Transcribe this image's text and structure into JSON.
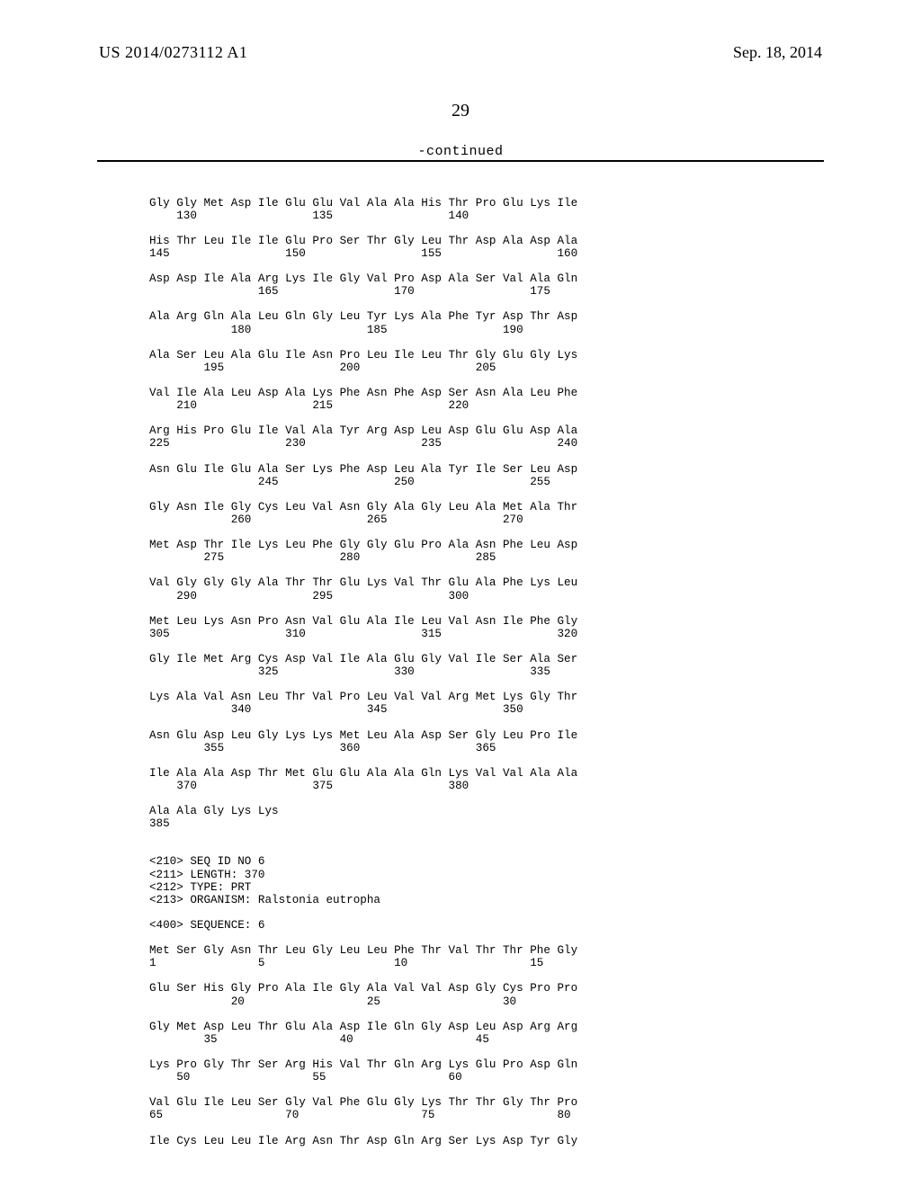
{
  "header": {
    "pub_number": "US 2014/0273112 A1",
    "pub_date": "Sep. 18, 2014",
    "page_number": "29",
    "continued_label": "-continued"
  },
  "sequence_text": "Gly Gly Met Asp Ile Glu Glu Val Ala Ala His Thr Pro Glu Lys Ile\n    130                 135                 140\n\nHis Thr Leu Ile Ile Glu Pro Ser Thr Gly Leu Thr Asp Ala Asp Ala\n145                 150                 155                 160\n\nAsp Asp Ile Ala Arg Lys Ile Gly Val Pro Asp Ala Ser Val Ala Gln\n                165                 170                 175\n\nAla Arg Gln Ala Leu Gln Gly Leu Tyr Lys Ala Phe Tyr Asp Thr Asp\n            180                 185                 190\n\nAla Ser Leu Ala Glu Ile Asn Pro Leu Ile Leu Thr Gly Glu Gly Lys\n        195                 200                 205\n\nVal Ile Ala Leu Asp Ala Lys Phe Asn Phe Asp Ser Asn Ala Leu Phe\n    210                 215                 220\n\nArg His Pro Glu Ile Val Ala Tyr Arg Asp Leu Asp Glu Glu Asp Ala\n225                 230                 235                 240\n\nAsn Glu Ile Glu Ala Ser Lys Phe Asp Leu Ala Tyr Ile Ser Leu Asp\n                245                 250                 255\n\nGly Asn Ile Gly Cys Leu Val Asn Gly Ala Gly Leu Ala Met Ala Thr\n            260                 265                 270\n\nMet Asp Thr Ile Lys Leu Phe Gly Gly Glu Pro Ala Asn Phe Leu Asp\n        275                 280                 285\n\nVal Gly Gly Gly Ala Thr Thr Glu Lys Val Thr Glu Ala Phe Lys Leu\n    290                 295                 300\n\nMet Leu Lys Asn Pro Asn Val Glu Ala Ile Leu Val Asn Ile Phe Gly\n305                 310                 315                 320\n\nGly Ile Met Arg Cys Asp Val Ile Ala Glu Gly Val Ile Ser Ala Ser\n                325                 330                 335\n\nLys Ala Val Asn Leu Thr Val Pro Leu Val Val Arg Met Lys Gly Thr\n            340                 345                 350\n\nAsn Glu Asp Leu Gly Lys Lys Met Leu Ala Asp Ser Gly Leu Pro Ile\n        355                 360                 365\n\nIle Ala Ala Asp Thr Met Glu Glu Ala Ala Gln Lys Val Val Ala Ala\n    370                 375                 380\n\nAla Ala Gly Lys Lys\n385\n\n\n<210> SEQ ID NO 6\n<211> LENGTH: 370\n<212> TYPE: PRT\n<213> ORGANISM: Ralstonia eutropha\n\n<400> SEQUENCE: 6\n\nMet Ser Gly Asn Thr Leu Gly Leu Leu Phe Thr Val Thr Thr Phe Gly\n1               5                   10                  15\n\nGlu Ser His Gly Pro Ala Ile Gly Ala Val Val Asp Gly Cys Pro Pro\n            20                  25                  30\n\nGly Met Asp Leu Thr Glu Ala Asp Ile Gln Gly Asp Leu Asp Arg Arg\n        35                  40                  45\n\nLys Pro Gly Thr Ser Arg His Val Thr Gln Arg Lys Glu Pro Asp Gln\n    50                  55                  60\n\nVal Glu Ile Leu Ser Gly Val Phe Glu Gly Lys Thr Thr Gly Thr Pro\n65                  70                  75                  80\n\nIle Cys Leu Leu Ile Arg Asn Thr Asp Gln Arg Ser Lys Asp Tyr Gly"
}
